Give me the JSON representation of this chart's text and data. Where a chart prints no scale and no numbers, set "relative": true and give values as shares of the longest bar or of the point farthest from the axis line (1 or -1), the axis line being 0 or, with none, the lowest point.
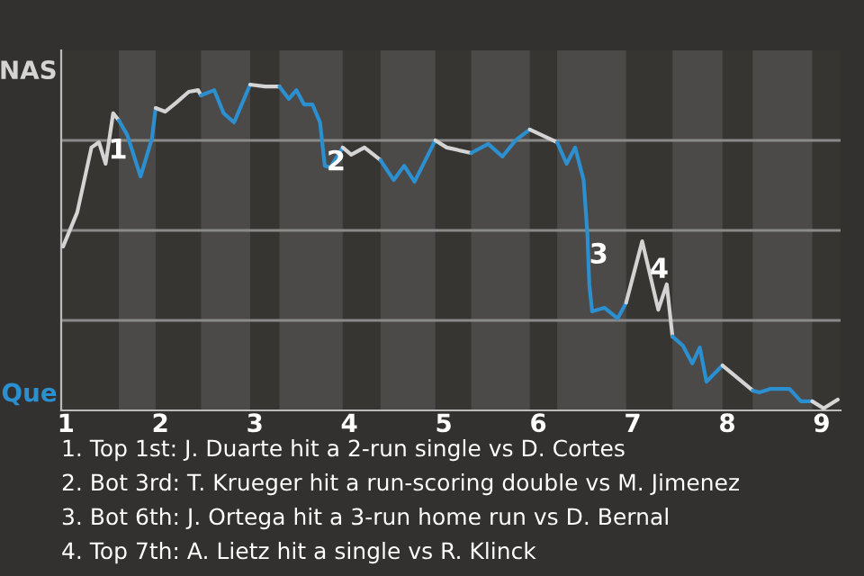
{
  "chart_data": {
    "type": "line",
    "relative": true,
    "xlim": [
      0.95,
      9.2
    ],
    "xticks": [
      1,
      2,
      3,
      4,
      5,
      6,
      7,
      8,
      9
    ],
    "grid": "y",
    "marker": "none",
    "line_style": "solid",
    "legend": false,
    "bands": [
      {
        "axis": "x",
        "from": 1.56,
        "to": 1.95,
        "color": "#4b4a48"
      },
      {
        "axis": "x",
        "from": 2.43,
        "to": 2.95,
        "color": "#4b4a48"
      },
      {
        "axis": "x",
        "from": 3.26,
        "to": 3.93,
        "color": "#4b4a48"
      },
      {
        "axis": "x",
        "from": 4.33,
        "to": 4.91,
        "color": "#4b4a48"
      },
      {
        "axis": "x",
        "from": 5.29,
        "to": 5.91,
        "color": "#4b4a48"
      },
      {
        "axis": "x",
        "from": 6.2,
        "to": 6.93,
        "color": "#4b4a48"
      },
      {
        "axis": "x",
        "from": 7.42,
        "to": 7.95,
        "color": "#4b4a48"
      },
      {
        "axis": "x",
        "from": 8.27,
        "to": 8.9,
        "color": "#4b4a48"
      }
    ],
    "series": [
      {
        "name": "NAS",
        "color": "#d4d4d4",
        "x": [
          0.97,
          1.12,
          1.27,
          1.35,
          1.42,
          1.5,
          1.56
        ],
        "values": [
          0.503,
          0.608,
          0.807,
          0.823,
          0.757,
          0.912,
          0.89
        ]
      },
      {
        "name": "Que",
        "color": "#2b8fd0",
        "x": [
          1.56,
          1.65,
          1.79,
          1.91,
          1.95
        ],
        "values": [
          0.89,
          0.845,
          0.718,
          0.834,
          0.928
        ]
      },
      {
        "color": "#d4d4d4",
        "x": [
          1.95,
          2.05,
          2.17,
          2.3,
          2.4,
          2.43
        ],
        "values": [
          0.928,
          0.917,
          0.945,
          0.978,
          0.983,
          0.967
        ]
      },
      {
        "color": "#2b8fd0",
        "x": [
          2.43,
          2.57,
          2.67,
          2.78,
          2.95
        ],
        "values": [
          0.967,
          0.983,
          0.912,
          0.884,
          1
        ]
      },
      {
        "color": "#d5d5d5",
        "x": [
          2.95,
          3.11,
          3.26
        ],
        "values": [
          1,
          0.994,
          0.994
        ]
      },
      {
        "color": "#2b8fd0",
        "x": [
          3.26,
          3.36,
          3.44,
          3.52,
          3.61,
          3.69,
          3.74,
          3.8,
          3.93
        ],
        "values": [
          0.994,
          0.956,
          0.983,
          0.939,
          0.939,
          0.884,
          0.751,
          0.746,
          0.807
        ]
      },
      {
        "color": "#d4d4d4",
        "x": [
          3.93,
          4.02,
          4.16,
          4.33
        ],
        "values": [
          0.807,
          0.785,
          0.807,
          0.768
        ]
      },
      {
        "color": "#2b8fd0",
        "x": [
          4.33,
          4.47,
          4.58,
          4.69,
          4.91
        ],
        "values": [
          0.768,
          0.707,
          0.751,
          0.702,
          0.829
        ]
      },
      {
        "color": "#d4d4d4",
        "x": [
          4.91,
          5.03,
          5.29
        ],
        "values": [
          0.829,
          0.807,
          0.79
        ]
      },
      {
        "color": "#2b8fd0",
        "x": [
          5.29,
          5.47,
          5.62,
          5.76,
          5.91
        ],
        "values": [
          0.79,
          0.818,
          0.779,
          0.829,
          0.862
        ]
      },
      {
        "color": "#d4d4d4",
        "x": [
          5.91,
          6.2
        ],
        "values": [
          0.862,
          0.823
        ]
      },
      {
        "color": "#2b8fd0",
        "x": [
          6.2,
          6.3,
          6.39,
          6.48,
          6.52,
          6.54,
          6.57,
          6.7,
          6.84,
          6.93
        ],
        "values": [
          0.823,
          0.757,
          0.807,
          0.707,
          0.541,
          0.387,
          0.304,
          0.315,
          0.282,
          0.331
        ]
      },
      {
        "color": "#d3d3d3",
        "x": [
          6.93,
          7.1,
          7.27,
          7.36,
          7.42
        ],
        "values": [
          0.331,
          0.519,
          0.309,
          0.387,
          0.227
        ]
      },
      {
        "color": "#2b8fd0",
        "x": [
          7.42,
          7.53,
          7.63,
          7.71,
          7.78,
          7.95
        ],
        "values": [
          0.227,
          0.199,
          0.144,
          0.193,
          0.088,
          0.138
        ]
      },
      {
        "color": "#d4d4d4",
        "x": [
          7.95,
          8.27
        ],
        "values": [
          0.138,
          0.061
        ]
      },
      {
        "color": "#2b8fd0",
        "x": [
          8.27,
          8.34,
          8.46,
          8.66,
          8.78,
          8.9
        ],
        "values": [
          0.061,
          0.055,
          0.066,
          0.066,
          0.028,
          0.028
        ]
      },
      {
        "color": "#d6d6d6",
        "x": [
          8.9,
          9.02,
          9.17
        ],
        "values": [
          0.028,
          0.006,
          0.033
        ]
      }
    ],
    "annotations": [
      {
        "text": "1",
        "x": 1.55,
        "y": 0.796
      },
      {
        "text": "2",
        "x": 3.86,
        "y": 0.76
      },
      {
        "text": "3",
        "x": 6.64,
        "y": 0.475
      },
      {
        "text": "4",
        "x": 7.28,
        "y": 0.43
      },
      "1. Top 1st: J. Duarte hit a 2-run single vs D. Cortes",
      "2. Bot 3rd: T. Krueger hit a run-scoring double vs M. Jimenez",
      "3. Bot 6th: J. Ortega hit a 3-run home run vs D. Bernal",
      "4. Top 7th: A. Lietz hit a single vs R. Klinck"
    ]
  }
}
